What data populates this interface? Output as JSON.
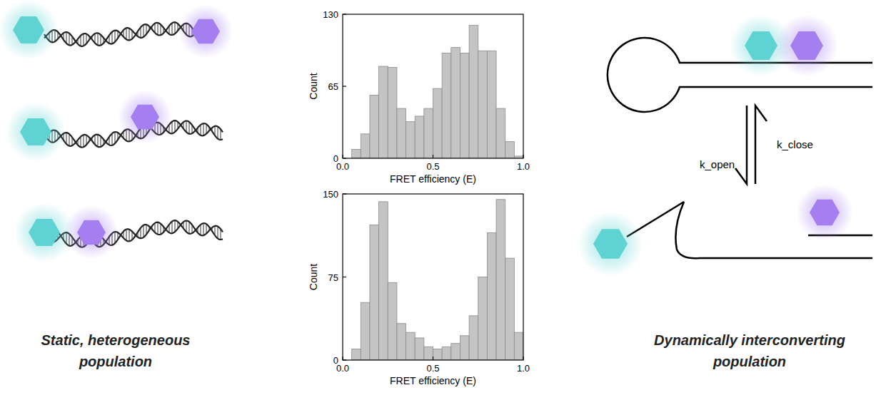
{
  "chart_data": [
    {
      "type": "histogram",
      "xlabel": "FRET efficiency (E)",
      "ylabel": "Count",
      "bins": [
        0.05,
        0.1,
        0.15,
        0.2,
        0.25,
        0.3,
        0.35,
        0.4,
        0.45,
        0.5,
        0.55,
        0.6,
        0.65,
        0.7,
        0.75,
        0.8,
        0.85,
        0.9,
        0.95,
        1.0
      ],
      "values": [
        8,
        22,
        57,
        83,
        82,
        45,
        33,
        38,
        45,
        63,
        95,
        100,
        95,
        120,
        97,
        97,
        45,
        15,
        2
      ],
      "color": "#c4c4c4",
      "xlim": [
        0,
        1
      ],
      "xticks": [
        {
          "value": 0,
          "label": "0.0"
        },
        {
          "value": 0.5,
          "label": "0.5"
        },
        {
          "value": 1,
          "label": "1.0"
        }
      ],
      "ylim": [
        0,
        130
      ],
      "yticks": [
        0,
        65,
        130
      ]
    },
    {
      "type": "histogram",
      "xlabel": "FRET efficiency (E)",
      "ylabel": "Count",
      "bins": [
        0.05,
        0.1,
        0.15,
        0.2,
        0.25,
        0.3,
        0.35,
        0.4,
        0.45,
        0.5,
        0.55,
        0.6,
        0.65,
        0.7,
        0.75,
        0.8,
        0.85,
        0.9,
        0.95,
        1.0
      ],
      "values": [
        10,
        52,
        122,
        143,
        70,
        33,
        25,
        20,
        12,
        10,
        12,
        15,
        22,
        40,
        75,
        115,
        145,
        92,
        25
      ],
      "color": "#c4c4c4",
      "xlim": [
        0,
        1
      ],
      "xticks": [
        {
          "value": 0,
          "label": "0.0"
        },
        {
          "value": 0.5,
          "label": "0.5"
        },
        {
          "value": 1,
          "label": "1.0"
        }
      ],
      "ylim": [
        0,
        150
      ],
      "yticks": [
        0,
        75,
        150
      ]
    }
  ],
  "diagram": {
    "left_label": "Static, heterogeneous population",
    "right_label": "Dynamically interconverting population",
    "rate_close": "k_close",
    "rate_open": "k_open"
  }
}
